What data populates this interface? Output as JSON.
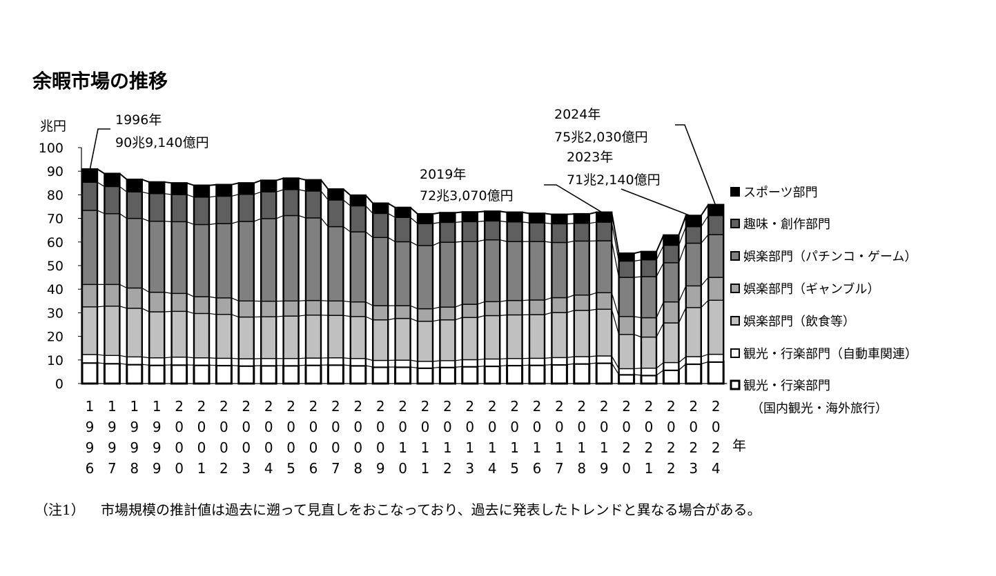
{
  "chart_data": {
    "type": "bar",
    "stacked": true,
    "title": "余暇市場の推移",
    "ylabel": "兆円",
    "xlabel": "年",
    "ylim": [
      0,
      100
    ],
    "yticks": [
      "0",
      "10",
      "20",
      "30",
      "40",
      "50",
      "60",
      "70",
      "80",
      "90",
      "100"
    ],
    "categories": [
      "1996",
      "1997",
      "1998",
      "1999",
      "2000",
      "2001",
      "2002",
      "2003",
      "2004",
      "2005",
      "2006",
      "2007",
      "2008",
      "2009",
      "2010",
      "2011",
      "2012",
      "2013",
      "2014",
      "2015",
      "2016",
      "2017",
      "2018",
      "2019",
      "2020",
      "2021",
      "2022",
      "2023",
      "2024"
    ],
    "totals": [
      90.9,
      89.0,
      86.5,
      85.4,
      85.0,
      84.0,
      84.3,
      84.3,
      85.3,
      85.7,
      85.1,
      81.6,
      80.0,
      76.6,
      74.6,
      71.9,
      71.9,
      72.3,
      72.7,
      72.3,
      71.8,
      71.7,
      71.7,
      72.3,
      55.2,
      55.7,
      62.8,
      71.2,
      75.2
    ],
    "series": [
      {
        "name": "観光・行楽部門（国内観光・海外旅行）",
        "legend_line1": "観光・行楽部門",
        "legend_line2": "（国内観光・海外旅行）",
        "color": "#ffffff",
        "border_width": 3,
        "values": [
          8.8,
          8.5,
          8.1,
          7.8,
          7.9,
          7.8,
          7.7,
          7.5,
          7.6,
          7.6,
          7.8,
          7.9,
          7.6,
          7.0,
          7.0,
          6.6,
          6.9,
          7.2,
          7.4,
          7.7,
          7.8,
          8.0,
          8.4,
          8.7,
          3.8,
          3.5,
          5.7,
          8.3,
          9.2
        ]
      },
      {
        "name": "観光・行楽部門（自動車関連）",
        "legend_line1": "観光・行楽部門（自動車関連）",
        "legend_line2": "",
        "color": "#ffffff",
        "border_width": 1.4,
        "values": [
          3.5,
          3.4,
          3.2,
          3.1,
          3.3,
          3.1,
          3.0,
          3.0,
          3.0,
          3.0,
          3.0,
          3.0,
          3.0,
          2.8,
          2.9,
          2.8,
          2.8,
          2.9,
          3.0,
          2.9,
          2.9,
          3.0,
          3.0,
          3.0,
          2.5,
          3.0,
          3.2,
          3.1,
          3.2
        ]
      },
      {
        "name": "娯楽部門（飲食等）",
        "legend_line1": "娯楽部門（飲食等）",
        "legend_line2": "",
        "color": "#c0c0c0",
        "border_width": 1.4,
        "values": [
          20.2,
          20.9,
          20.6,
          19.5,
          19.4,
          18.8,
          18.6,
          17.7,
          17.7,
          18.0,
          18.2,
          18.0,
          17.8,
          17.2,
          17.7,
          17.0,
          17.3,
          17.9,
          18.4,
          18.5,
          18.5,
          19.1,
          19.6,
          19.8,
          14.5,
          13.2,
          16.8,
          20.8,
          22.9
        ]
      },
      {
        "name": "娯楽部門（ギャンブル）",
        "legend_line1": "娯楽部門（ギャンブル）",
        "legend_line2": "",
        "color": "#a6a6a6",
        "border_width": 1.4,
        "values": [
          9.5,
          9.2,
          8.6,
          8.3,
          7.6,
          7.1,
          7.0,
          6.8,
          6.6,
          6.4,
          6.2,
          6.1,
          6.2,
          6.0,
          5.4,
          5.3,
          5.4,
          5.6,
          5.9,
          6.1,
          6.2,
          6.3,
          6.5,
          7.0,
          7.6,
          8.2,
          8.9,
          9.2,
          9.7
        ]
      },
      {
        "name": "娯楽部門（パチンコ・ゲーム）",
        "legend_line1": "娯楽部門（パチンコ・ゲーム）",
        "legend_line2": "",
        "color": "#808080",
        "border_width": 1.4,
        "values": [
          31.4,
          30.0,
          29.5,
          30.1,
          30.4,
          30.6,
          31.5,
          33.7,
          35.0,
          36.2,
          35.0,
          31.5,
          29.7,
          28.9,
          27.1,
          26.8,
          27.5,
          26.6,
          26.2,
          25.0,
          24.8,
          23.4,
          22.9,
          22.0,
          16.6,
          17.4,
          16.6,
          18.1,
          18.1
        ]
      },
      {
        "name": "趣味・創作部門",
        "legend_line1": "趣味・創作部門",
        "legend_line2": "",
        "color": "#5f5f5f",
        "border_width": 1.4,
        "values": [
          11.9,
          11.5,
          11.2,
          11.7,
          11.5,
          11.6,
          11.6,
          11.5,
          11.3,
          11.0,
          11.4,
          11.3,
          11.0,
          10.2,
          10.3,
          9.3,
          8.4,
          8.4,
          8.0,
          8.3,
          7.9,
          7.9,
          7.5,
          7.9,
          6.9,
          7.1,
          7.4,
          7.0,
          8.1
        ]
      },
      {
        "name": "スポーツ部門",
        "legend_line1": "スポーツ部門",
        "legend_line2": "",
        "color": "#000000",
        "border_width": 1.4,
        "values": [
          5.6,
          5.5,
          5.3,
          4.9,
          4.9,
          5.0,
          4.9,
          4.8,
          4.9,
          4.8,
          4.7,
          4.6,
          4.5,
          4.3,
          4.2,
          4.1,
          4.1,
          4.1,
          4.1,
          4.1,
          4.0,
          4.0,
          4.0,
          4.2,
          3.3,
          3.5,
          4.3,
          4.7,
          4.6
        ]
      }
    ],
    "annotations": [
      {
        "index": 0,
        "line1": "1996年",
        "line2": "90兆9,140億円"
      },
      {
        "index": 23,
        "line1": "2019年",
        "line2": "72兆3,070億円"
      },
      {
        "index": 28,
        "line1": "2024年",
        "line2": "75兆2,030億円"
      },
      {
        "index": 27,
        "line1": "2023年",
        "line2": "71兆2,140億円"
      }
    ],
    "legend_position": "right"
  },
  "note": {
    "label": "（注1）",
    "text": "市場規模の推計値は過去に遡って見直しをおこなっており、過去に発表したトレンドと異なる場合がある。"
  }
}
